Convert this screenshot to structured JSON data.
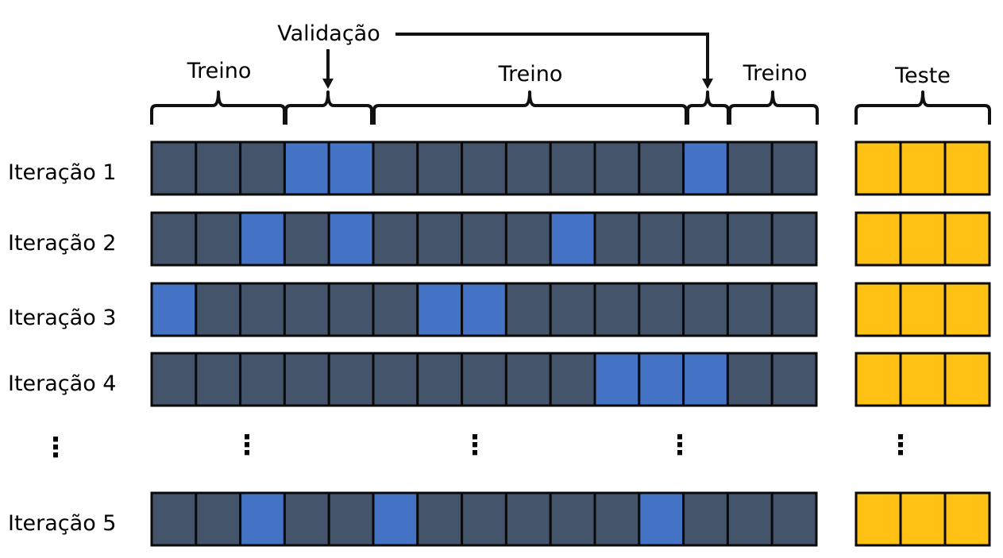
{
  "colors": {
    "train": "#44546a",
    "validation": "#4472c4",
    "test": "#ffc114",
    "border": "#0a0a0a"
  },
  "headers": {
    "validation": "Validação",
    "train_left": "Treino",
    "train_mid": "Treino",
    "train_right": "Treino",
    "test": "Teste"
  },
  "ellipsis": "⋮",
  "iterations": [
    {
      "label": "Iteração 1",
      "validation_indices": [
        3,
        4,
        12
      ]
    },
    {
      "label": "Iteração 2",
      "validation_indices": [
        2,
        4,
        9
      ]
    },
    {
      "label": "Iteração 3",
      "validation_indices": [
        0,
        6,
        7
      ]
    },
    {
      "label": "Iteração 4",
      "validation_indices": [
        10,
        11,
        12
      ]
    },
    {
      "label": "Iteração 5",
      "validation_indices": [
        2,
        5,
        11
      ]
    }
  ],
  "train_cells_per_row": 15,
  "test_cells_per_row": 3
}
